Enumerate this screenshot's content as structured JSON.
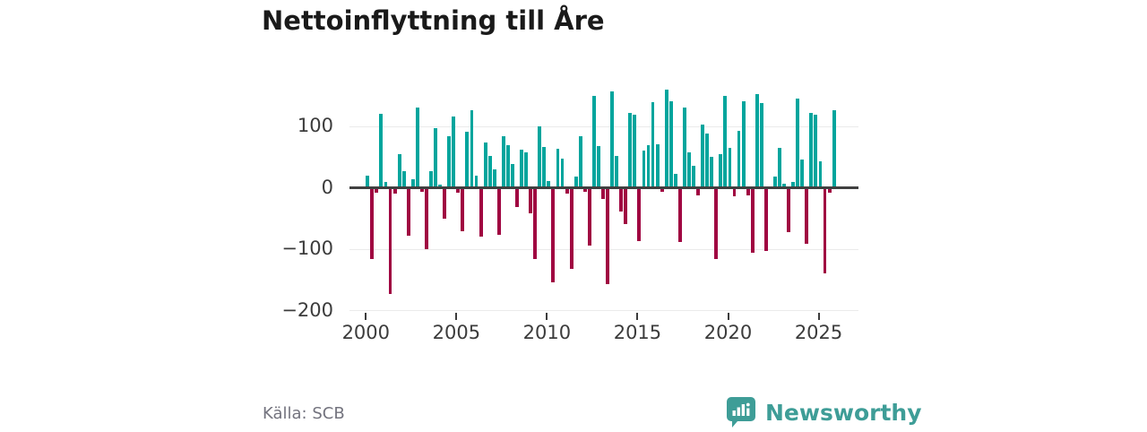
{
  "title": "Nettoinflyttning till Åre",
  "source": "Källa: SCB",
  "branding": {
    "name": "Newsworthy",
    "logo_icon": "speech-bubble-bar-chart",
    "color": "#3E9D97"
  },
  "colors": {
    "positive_bar": "#00A59D",
    "negative_bar": "#A00541",
    "zero_line": "#404040",
    "gridline": "#EBEBEB",
    "axis_text": "#3C3C3C",
    "title_text": "#1A1A1A",
    "source_text": "#73737E"
  },
  "chart_data": {
    "type": "bar",
    "title": "Nettoinflyttning till Åre",
    "xlabel": "",
    "ylabel": "",
    "frequency": "quarterly",
    "start_period": "2000Q1",
    "end_period": "2025Q4",
    "x_tick_years": [
      2000,
      2005,
      2010,
      2015,
      2020,
      2025
    ],
    "x_tick_labels": [
      "2000",
      "2005",
      "2010",
      "2015",
      "2020",
      "2025"
    ],
    "y_ticks": [
      {
        "label": "100",
        "value": 100
      },
      {
        "label": "0",
        "value": 0
      },
      {
        "label": "−100",
        "value": -100
      },
      {
        "label": "−200",
        "value": -200
      }
    ],
    "ylim": [
      -200,
      167
    ],
    "grid": "horizontal",
    "legend": "none",
    "values": [
      19,
      -116,
      -8,
      120,
      9,
      -173,
      -10,
      55,
      26,
      -79,
      13,
      131,
      -7,
      -100,
      27,
      97,
      5,
      -51,
      83,
      116,
      -8,
      -71,
      91,
      126,
      19,
      -80,
      74,
      52,
      29,
      -77,
      84,
      69,
      38,
      -32,
      62,
      58,
      -42,
      -116,
      99,
      66,
      10,
      -154,
      63,
      47,
      -10,
      -132,
      18,
      84,
      -7,
      -94,
      150,
      68,
      -18,
      -157,
      156,
      51,
      -39,
      -59,
      121,
      118,
      -87,
      61,
      69,
      139,
      71,
      -7,
      160,
      141,
      22,
      -88,
      131,
      58,
      35,
      -12,
      103,
      88,
      50,
      -117,
      55,
      149,
      64,
      -14,
      93,
      140,
      -12,
      -106,
      152,
      138,
      -103,
      0,
      18,
      65,
      6,
      -72,
      9,
      145,
      45,
      -92,
      122,
      119,
      43,
      -140,
      -8,
      126
    ]
  }
}
